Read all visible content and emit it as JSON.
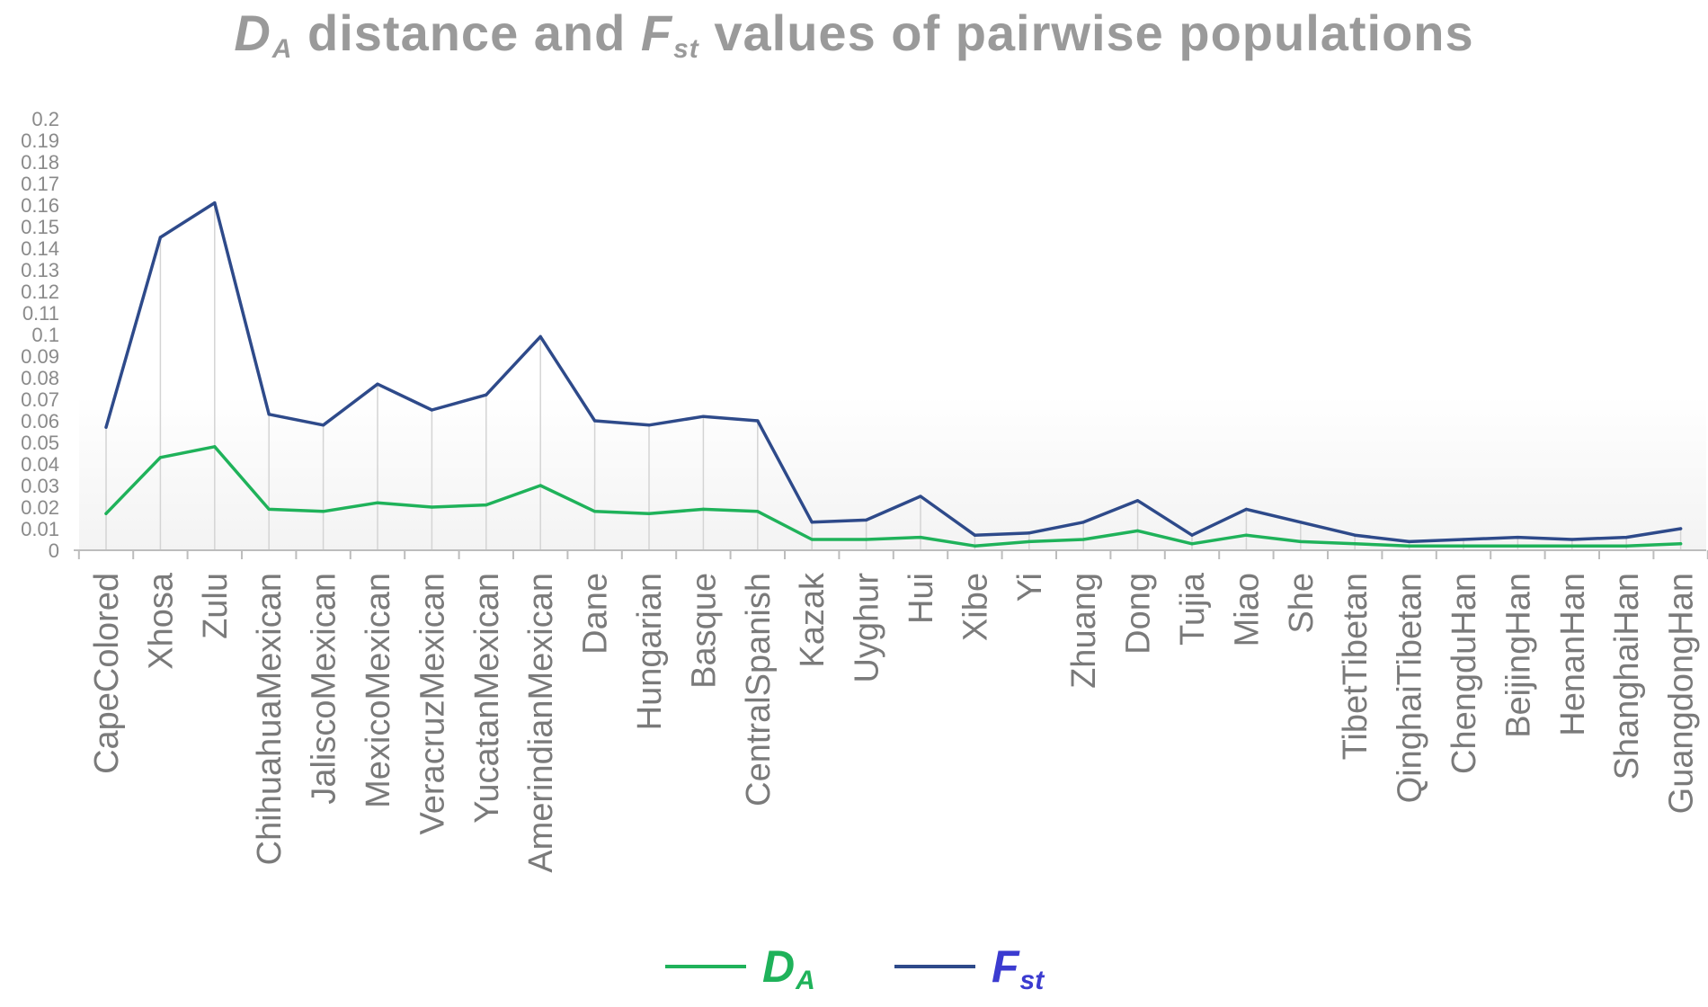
{
  "title": {
    "da_main": "D",
    "da_sub": "A",
    "middle": "distance and",
    "fst_main": "F",
    "fst_sub": "st",
    "end": "values of pairwise populations"
  },
  "legend": [
    {
      "main": "D",
      "sub": "A",
      "line_color": "#1fb25a",
      "text_color": "#1fb25a"
    },
    {
      "main": "F",
      "sub": "st",
      "line_color": "#2e4a8a",
      "text_color": "#3b3bd0"
    }
  ],
  "chart_data": {
    "type": "line",
    "title": "DA distance and Fst values of pairwise populations",
    "xlabel": "",
    "ylabel": "",
    "ylim": [
      0,
      0.2
    ],
    "yticks": [
      0,
      0.01,
      0.02,
      0.03,
      0.04,
      0.05,
      0.06,
      0.07,
      0.08,
      0.09,
      0.1,
      0.11,
      0.12,
      0.13,
      0.14,
      0.15,
      0.16,
      0.17,
      0.18,
      0.19,
      0.2
    ],
    "grid": "vertical lines at each category",
    "legend_position": "bottom",
    "categories": [
      "CapeColored",
      "Xhosa",
      "Zulu",
      "ChihuahuaMexican",
      "JaliscoMexican",
      "MexicoMexican",
      "VeracruzMexican",
      "YucatanMexican",
      "AmerindianMexican",
      "Dane",
      "Hungarian",
      "Basque",
      "CentralSpanish",
      "Kazak",
      "Uyghur",
      "Hui",
      "Xibe",
      "Yi",
      "Zhuang",
      "Dong",
      "Tujia",
      "Miao",
      "She",
      "TibetTibetan",
      "QinghaiTibetan",
      "ChengduHan",
      "BeijingHan",
      "HenanHan",
      "ShanghaiHan",
      "GuangdongHan"
    ],
    "series": [
      {
        "name": "DA",
        "color": "#1fb25a",
        "values": [
          0.017,
          0.043,
          0.048,
          0.019,
          0.018,
          0.022,
          0.02,
          0.021,
          0.03,
          0.018,
          0.017,
          0.019,
          0.018,
          0.005,
          0.005,
          0.006,
          0.002,
          0.004,
          0.005,
          0.009,
          0.003,
          0.007,
          0.004,
          0.003,
          0.002,
          0.002,
          0.002,
          0.002,
          0.002,
          0.003
        ]
      },
      {
        "name": "Fst",
        "color": "#2e4a8a",
        "values": [
          0.057,
          0.145,
          0.161,
          0.063,
          0.058,
          0.077,
          0.065,
          0.072,
          0.099,
          0.06,
          0.058,
          0.062,
          0.06,
          0.013,
          0.014,
          0.025,
          0.007,
          0.008,
          0.013,
          0.023,
          0.007,
          0.019,
          0.013,
          0.007,
          0.004,
          0.005,
          0.006,
          0.005,
          0.006,
          0.01
        ]
      }
    ]
  }
}
